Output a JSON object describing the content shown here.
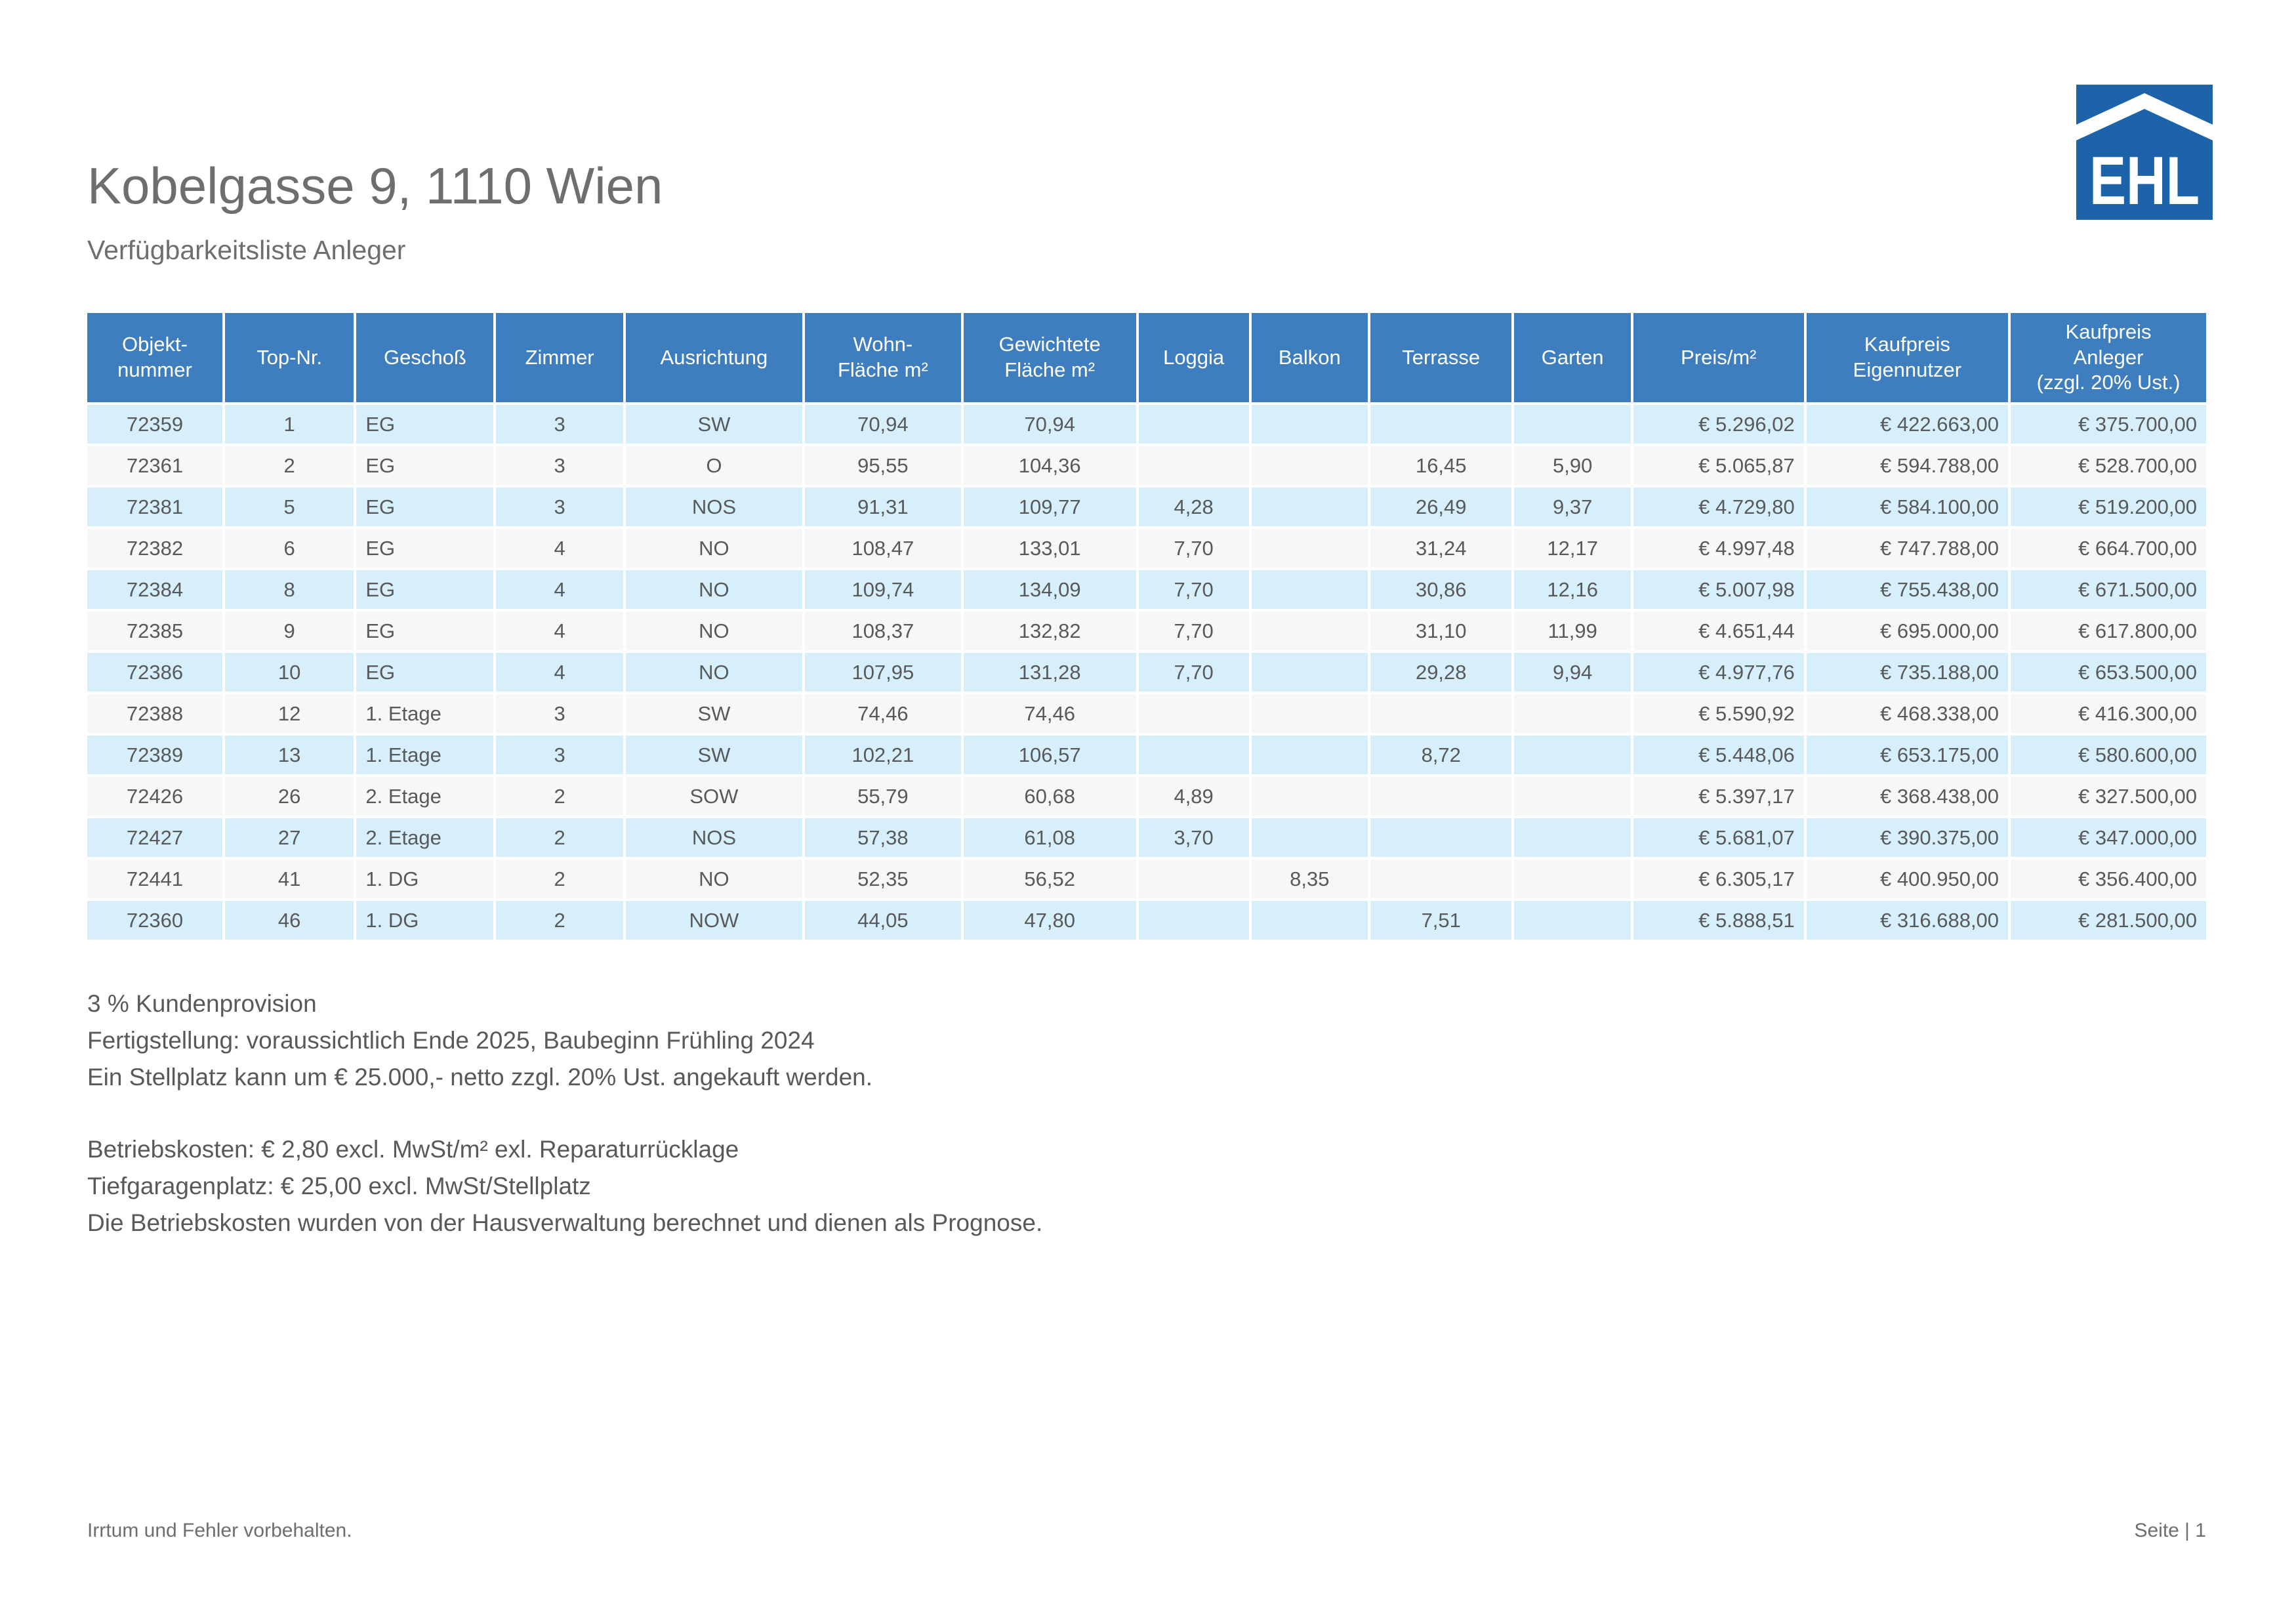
{
  "header": {
    "title": "Kobelgasse 9, 1110 Wien",
    "subtitle": "Verfügbarkeitsliste Anleger"
  },
  "logo": {
    "text": "EHL",
    "color": "#1c63a9"
  },
  "colors": {
    "table_header_bg": "#3e7ebe",
    "row_odd_bg": "#d7effa",
    "row_even_bg": "#f7f7f7",
    "text_gray": "#58595b",
    "title_gray": "#6d6e70"
  },
  "table": {
    "columns": [
      {
        "label": "Objekt-\nnummer"
      },
      {
        "label": "Top-Nr."
      },
      {
        "label": "Geschoß"
      },
      {
        "label": "Zimmer"
      },
      {
        "label": "Ausrichtung"
      },
      {
        "label": "Wohn-\nFläche m²"
      },
      {
        "label": "Gewichtete\nFläche m²"
      },
      {
        "label": "Loggia"
      },
      {
        "label": "Balkon"
      },
      {
        "label": "Terrasse"
      },
      {
        "label": "Garten"
      },
      {
        "label": "Preis/m²"
      },
      {
        "label": "Kaufpreis\nEigennutzer"
      },
      {
        "label": "Kaufpreis\nAnleger\n(zzgl. 20% Ust.)"
      }
    ],
    "rows": [
      {
        "cells": [
          "72359",
          "1",
          "EG",
          "3",
          "SW",
          "70,94",
          "70,94",
          "",
          "",
          "",
          "",
          "€ 5.296,02",
          "€ 422.663,00",
          "€ 375.700,00"
        ]
      },
      {
        "cells": [
          "72361",
          "2",
          "EG",
          "3",
          "O",
          "95,55",
          "104,36",
          "",
          "",
          "16,45",
          "5,90",
          "€ 5.065,87",
          "€ 594.788,00",
          "€ 528.700,00"
        ]
      },
      {
        "cells": [
          "72381",
          "5",
          "EG",
          "3",
          "NOS",
          "91,31",
          "109,77",
          "4,28",
          "",
          "26,49",
          "9,37",
          "€ 4.729,80",
          "€ 584.100,00",
          "€ 519.200,00"
        ]
      },
      {
        "cells": [
          "72382",
          "6",
          "EG",
          "4",
          "NO",
          "108,47",
          "133,01",
          "7,70",
          "",
          "31,24",
          "12,17",
          "€ 4.997,48",
          "€ 747.788,00",
          "€ 664.700,00"
        ]
      },
      {
        "cells": [
          "72384",
          "8",
          "EG",
          "4",
          "NO",
          "109,74",
          "134,09",
          "7,70",
          "",
          "30,86",
          "12,16",
          "€ 5.007,98",
          "€ 755.438,00",
          "€ 671.500,00"
        ]
      },
      {
        "cells": [
          "72385",
          "9",
          "EG",
          "4",
          "NO",
          "108,37",
          "132,82",
          "7,70",
          "",
          "31,10",
          "11,99",
          "€ 4.651,44",
          "€ 695.000,00",
          "€ 617.800,00"
        ]
      },
      {
        "cells": [
          "72386",
          "10",
          "EG",
          "4",
          "NO",
          "107,95",
          "131,28",
          "7,70",
          "",
          "29,28",
          "9,94",
          "€ 4.977,76",
          "€ 735.188,00",
          "€ 653.500,00"
        ]
      },
      {
        "cells": [
          "72388",
          "12",
          "1. Etage",
          "3",
          "SW",
          "74,46",
          "74,46",
          "",
          "",
          "",
          "",
          "€ 5.590,92",
          "€ 468.338,00",
          "€ 416.300,00"
        ]
      },
      {
        "cells": [
          "72389",
          "13",
          "1. Etage",
          "3",
          "SW",
          "102,21",
          "106,57",
          "",
          "",
          "8,72",
          "",
          "€ 5.448,06",
          "€ 653.175,00",
          "€ 580.600,00"
        ]
      },
      {
        "cells": [
          "72426",
          "26",
          "2. Etage",
          "2",
          "SOW",
          "55,79",
          "60,68",
          "4,89",
          "",
          "",
          "",
          "€ 5.397,17",
          "€ 368.438,00",
          "€ 327.500,00"
        ]
      },
      {
        "cells": [
          "72427",
          "27",
          "2. Etage",
          "2",
          "NOS",
          "57,38",
          "61,08",
          "3,70",
          "",
          "",
          "",
          "€ 5.681,07",
          "€ 390.375,00",
          "€ 347.000,00"
        ]
      },
      {
        "cells": [
          "72441",
          "41",
          "1. DG",
          "2",
          "NO",
          "52,35",
          "56,52",
          "",
          "8,35",
          "",
          "",
          "€ 6.305,17",
          "€ 400.950,00",
          "€ 356.400,00"
        ]
      },
      {
        "cells": [
          "72360",
          "46",
          "1. DG",
          "2",
          "NOW",
          "44,05",
          "47,80",
          "",
          "",
          "7,51",
          "",
          "€ 5.888,51",
          "€ 316.688,00",
          "€ 281.500,00"
        ]
      }
    ]
  },
  "notes": {
    "block1": [
      "3 % Kundenprovision",
      "Fertigstellung: voraussichtlich Ende 2025, Baubeginn Frühling 2024",
      "Ein Stellplatz kann um € 25.000,- netto zzgl. 20% Ust. angekauft werden."
    ],
    "block2": [
      "Betriebskosten: € 2,80 excl. MwSt/m² exl. Reparaturrücklage",
      "Tiefgaragenplatz: € 25,00 excl. MwSt/Stellplatz",
      "Die Betriebskosten wurden von der Hausverwaltung berechnet und dienen als Prognose."
    ]
  },
  "footer": {
    "left": "Irrtum und Fehler vorbehalten.",
    "right": "Seite | 1"
  }
}
